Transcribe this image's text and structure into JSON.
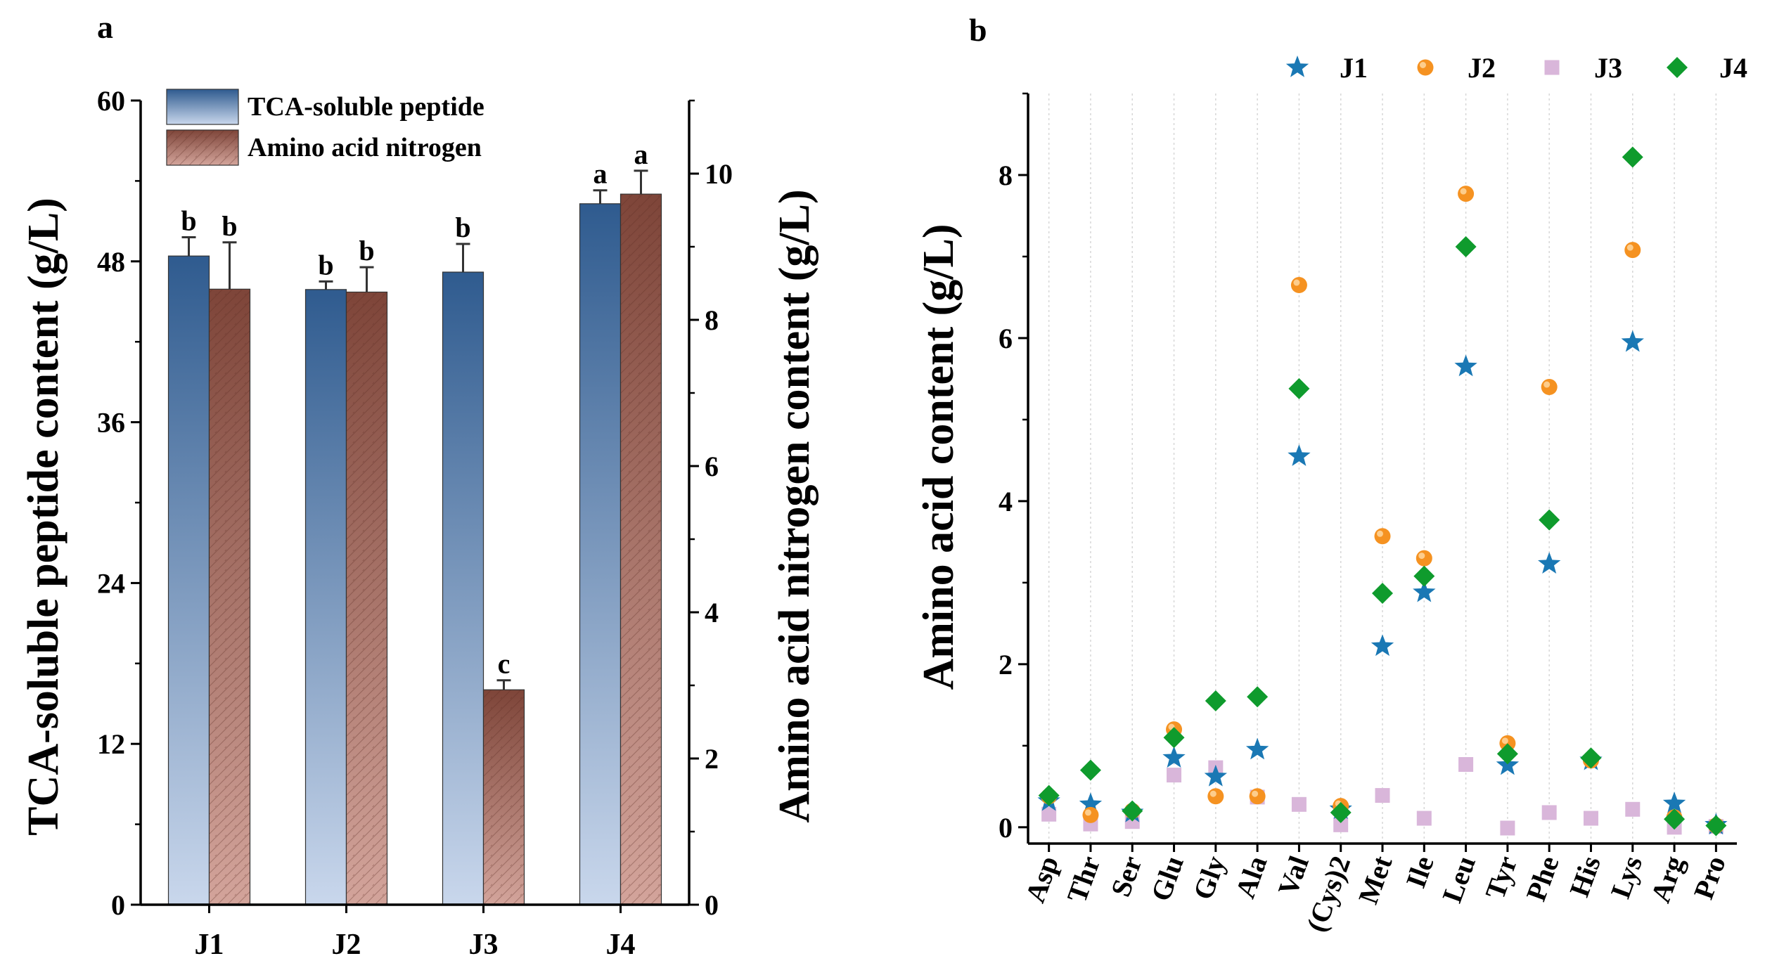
{
  "colors": {
    "tca_top": "#2f5b8f",
    "tca_bottom": "#c9d7ec",
    "aan_top": "#7e4539",
    "aan_bottom": "#d3a49b",
    "j1": "#1a78b4",
    "j2": "#f59221",
    "j3": "#d9b6da",
    "j4": "#0f9b2d",
    "grid": "#d7d7d7"
  },
  "chart_data": [
    {
      "type": "bar",
      "panel_label": "a",
      "categories": [
        "J1",
        "J2",
        "J3",
        "J4"
      ],
      "series": [
        {
          "name": "TCA-soluble peptide",
          "axis": "left",
          "values": [
            48.4,
            45.9,
            47.2,
            52.3
          ],
          "errors": [
            1.4,
            0.6,
            2.1,
            1.0
          ],
          "letters": [
            "b",
            "b",
            "b",
            "a"
          ]
        },
        {
          "name": "Amino acid nitrogen",
          "axis": "right",
          "values": [
            8.42,
            8.38,
            2.94,
            9.72
          ],
          "errors": [
            0.64,
            0.34,
            0.13,
            0.32
          ],
          "letters": [
            "b",
            "b",
            "c",
            "a"
          ]
        }
      ],
      "ylabel": "TCA-soluble peptide content (g/L)",
      "ylim": [
        0,
        60
      ],
      "yticks": [
        0,
        12,
        24,
        36,
        48,
        60
      ],
      "y2label": "Amino acid nitrogen content (g/L)",
      "y2lim": [
        0,
        11
      ],
      "y2ticks": [
        0,
        2,
        4,
        6,
        8,
        10
      ],
      "legend_position": "top-left"
    },
    {
      "type": "scatter",
      "panel_label": "b",
      "categories": [
        "Asp",
        "Thr",
        "Ser",
        "Glu",
        "Gly",
        "Ala",
        "Val",
        "(Cys)2",
        "Met",
        "Ile",
        "Leu",
        "Tyr",
        "Phe",
        "His",
        "Lys",
        "Arg",
        "Pro"
      ],
      "series": [
        {
          "name": "J1",
          "marker": "star",
          "values": [
            0.32,
            0.28,
            0.18,
            0.85,
            0.62,
            0.95,
            4.55,
            0.22,
            2.22,
            2.88,
            5.65,
            0.76,
            3.23,
            0.82,
            5.95,
            0.29,
            0.03
          ]
        },
        {
          "name": "J2",
          "marker": "circle",
          "values": [
            0.38,
            0.15,
            0.2,
            1.2,
            0.38,
            0.38,
            6.65,
            0.26,
            3.57,
            3.3,
            7.77,
            1.03,
            5.4,
            0.82,
            7.08,
            0.12,
            0.02
          ]
        },
        {
          "name": "J3",
          "marker": "square",
          "values": [
            0.16,
            0.04,
            0.07,
            0.64,
            0.73,
            0.37,
            0.28,
            0.03,
            0.39,
            0.11,
            0.77,
            -0.01,
            0.18,
            0.11,
            0.22,
            0.0,
            0.01
          ]
        },
        {
          "name": "J4",
          "marker": "diamond",
          "values": [
            0.39,
            0.7,
            0.2,
            1.1,
            1.55,
            1.6,
            5.38,
            0.18,
            2.87,
            3.08,
            7.12,
            0.9,
            3.77,
            0.85,
            8.22,
            0.1,
            0.02
          ]
        }
      ],
      "ylabel": "Amino acid content (g/L)",
      "ylim": [
        -0.2,
        9.0
      ],
      "yticks": [
        0,
        2,
        4,
        6,
        8
      ],
      "legend_position": "top"
    }
  ]
}
